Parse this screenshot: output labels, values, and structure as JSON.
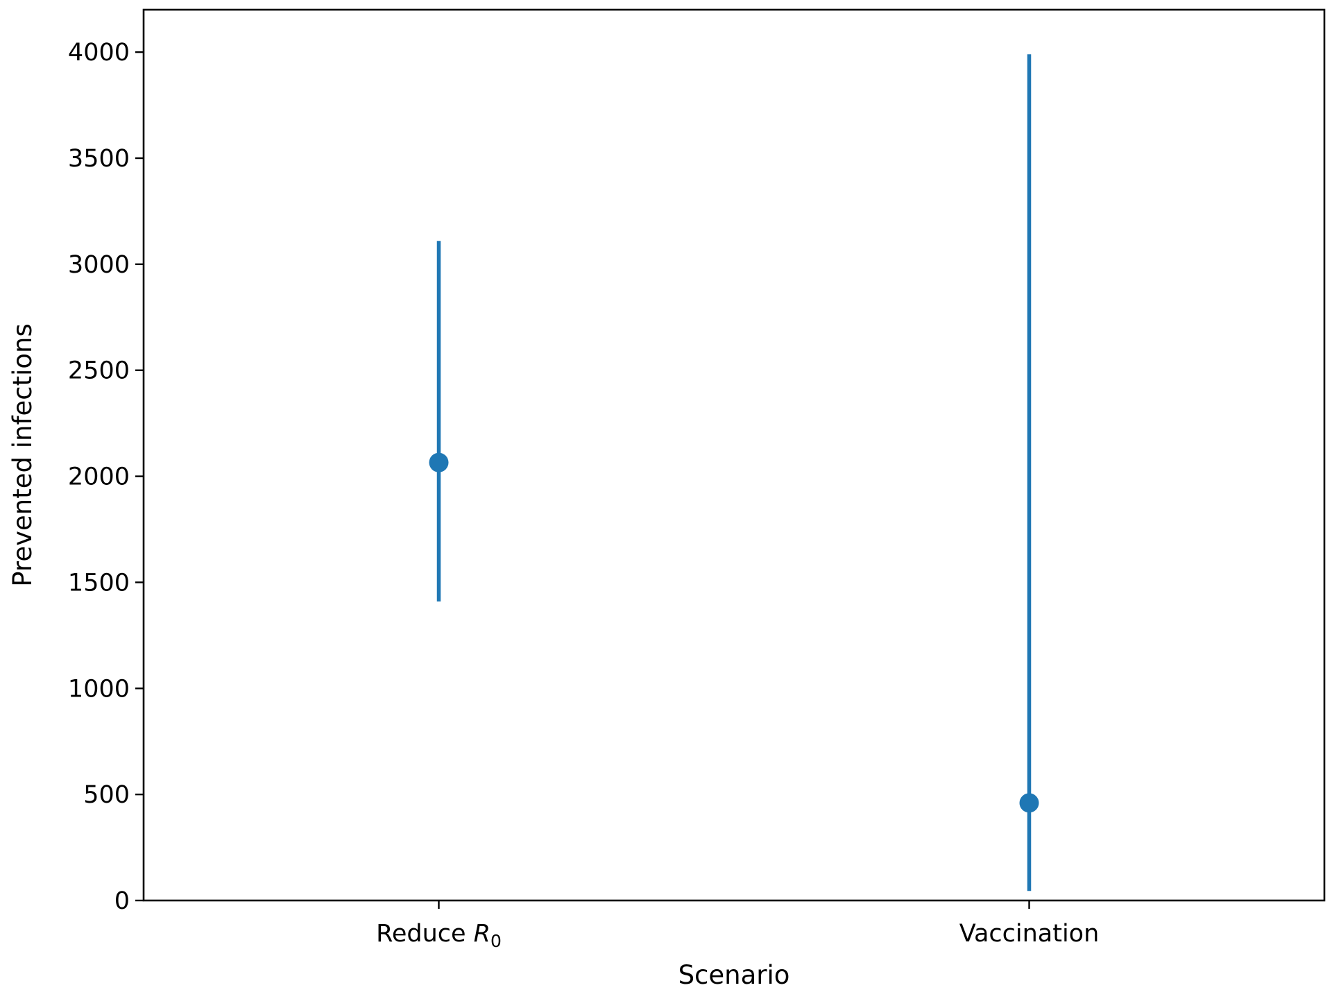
{
  "chart_data": {
    "type": "scatter",
    "subtype": "point-with-interval",
    "title": "",
    "xlabel": "Scenario",
    "ylabel": "Prevented infections",
    "ylim": [
      0,
      4200
    ],
    "yticks": [
      0,
      500,
      1000,
      1500,
      2000,
      2500,
      3000,
      3500,
      4000
    ],
    "grid": false,
    "legend": "none",
    "color": "#1f77b4",
    "categories": [
      {
        "label_main": "Reduce ",
        "label_var": "R",
        "label_sub": "0"
      },
      {
        "label_main": "Vaccination",
        "label_var": "",
        "label_sub": ""
      }
    ],
    "points": [
      {
        "value": 2065,
        "lower": 1410,
        "upper": 3110
      },
      {
        "value": 460,
        "lower": 45,
        "upper": 3990
      }
    ]
  }
}
